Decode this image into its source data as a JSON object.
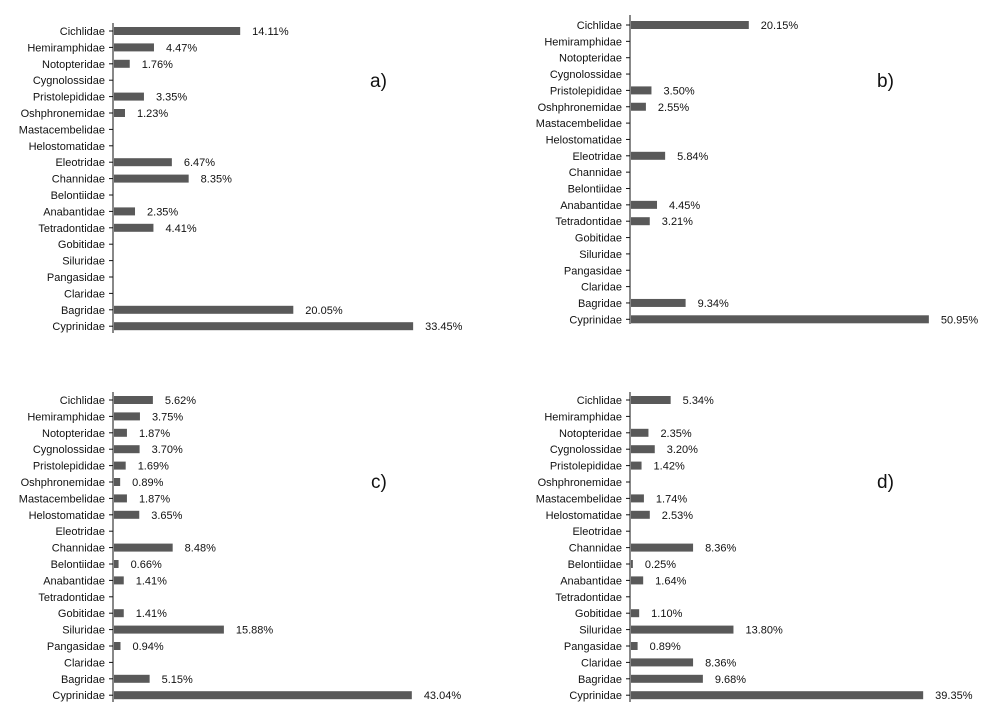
{
  "colors": {
    "bar": "#595959",
    "axis": "#111111",
    "text": "#111111",
    "background": "#ffffff"
  },
  "chart_data": [
    {
      "type": "bar",
      "orientation": "horizontal",
      "panel_label": "a)",
      "categories": [
        "Cichlidae",
        "Hemiramphidae",
        "Notopteridae",
        "Cygnolossidae",
        "Pristolepididae",
        "Oshphronemidae",
        "Mastacembelidae",
        "Helostomatidae",
        "Eleotridae",
        "Channidae",
        "Belontiidae",
        "Anabantidae",
        "Tetradontidae",
        "Gobitidae",
        "Siluridae",
        "Pangasidae",
        "Claridae",
        "Bagridae",
        "Cyprinidae"
      ],
      "values": [
        14.11,
        4.47,
        1.76,
        null,
        3.35,
        1.23,
        null,
        null,
        6.47,
        8.35,
        null,
        2.35,
        4.41,
        null,
        null,
        null,
        null,
        20.05,
        33.45
      ],
      "labels": [
        "14.11%",
        "4.47%",
        "1.76%",
        "",
        "3.35%",
        "1.23%",
        "",
        "",
        "6.47%",
        "8.35%",
        "",
        "2.35%",
        "4.41%",
        "",
        "",
        "",
        "",
        "20.05%",
        "33.45%"
      ],
      "xlim": [
        0,
        35
      ],
      "grid": false
    },
    {
      "type": "bar",
      "orientation": "horizontal",
      "panel_label": "b)",
      "categories": [
        "Cichlidae",
        "Hemiramphidae",
        "Notopteridae",
        "Cygnolossidae",
        "Pristolepididae",
        "Oshphronemidae",
        "Mastacembelidae",
        "Helostomatidae",
        "Eleotridae",
        "Channidae",
        "Belontiidae",
        "Anabantidae",
        "Tetradontidae",
        "Gobitidae",
        "Siluridae",
        "Pangasidae",
        "Claridae",
        "Bagridae",
        "Cyprinidae"
      ],
      "values": [
        20.15,
        null,
        null,
        null,
        3.5,
        2.55,
        null,
        null,
        5.84,
        null,
        null,
        4.45,
        3.21,
        null,
        null,
        null,
        null,
        9.34,
        50.95
      ],
      "labels": [
        "20.15%",
        "",
        "",
        "",
        "3.50%",
        "2.55%",
        "",
        "",
        "5.84%",
        "",
        "",
        "4.45%",
        "3.21%",
        "",
        "",
        "",
        "",
        "9.34%",
        "50.95%"
      ],
      "xlim": [
        0,
        52
      ],
      "grid": false
    },
    {
      "type": "bar",
      "orientation": "horizontal",
      "panel_label": "c)",
      "categories": [
        "Cichlidae",
        "Hemiramphidae",
        "Notopteridae",
        "Cygnolossidae",
        "Pristolepididae",
        "Oshphronemidae",
        "Mastacembelidae",
        "Helostomatidae",
        "Eleotridae",
        "Channidae",
        "Belontiidae",
        "Anabantidae",
        "Tetradontidae",
        "Gobitidae",
        "Siluridae",
        "Pangasidae",
        "Claridae",
        "Bagridae",
        "Cyprinidae"
      ],
      "values": [
        5.62,
        3.75,
        1.87,
        3.7,
        1.69,
        0.89,
        1.87,
        3.65,
        null,
        8.48,
        0.66,
        1.41,
        null,
        1.41,
        15.88,
        0.94,
        null,
        5.15,
        43.04
      ],
      "labels": [
        "5.62%",
        "3.75%",
        "1.87%",
        "3.70%",
        "1.69%",
        "0.89%",
        "1.87%",
        "3.65%",
        "",
        "8.48%",
        "0.66%",
        "1.41%",
        "",
        "1.41%",
        "15.88%",
        "0.94%",
        "",
        "5.15%",
        "43.04%"
      ],
      "xlim": [
        0,
        43.5
      ],
      "grid": false
    },
    {
      "type": "bar",
      "orientation": "horizontal",
      "panel_label": "d)",
      "categories": [
        "Cichlidae",
        "Hemiramphidae",
        "Notopteridae",
        "Cygnolossidae",
        "Pristolepididae",
        "Oshphronemidae",
        "Mastacembelidae",
        "Helostomatidae",
        "Eleotridae",
        "Channidae",
        "Belontiidae",
        "Anabantidae",
        "Tetradontidae",
        "Gobitidae",
        "Siluridae",
        "Pangasidae",
        "Claridae",
        "Bagridae",
        "Cyprinidae"
      ],
      "values": [
        5.34,
        null,
        2.35,
        3.2,
        1.42,
        null,
        1.74,
        2.53,
        null,
        8.36,
        0.25,
        1.64,
        null,
        1.1,
        13.8,
        0.89,
        8.36,
        9.68,
        39.35
      ],
      "labels": [
        "5.34%",
        "",
        "2.35%",
        "3.20%",
        "1.42%",
        "",
        "1.74%",
        "2.53%",
        "",
        "8.36%",
        "0.25%",
        "1.64%",
        "",
        "1.10%",
        "13.80%",
        "0.89%",
        "8.36%",
        "9.68%",
        "39.35%"
      ],
      "xlim": [
        0,
        40
      ],
      "grid": false
    }
  ]
}
